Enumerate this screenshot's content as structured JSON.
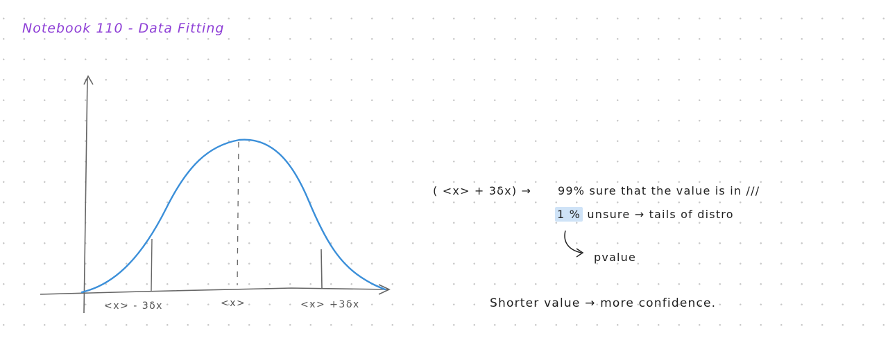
{
  "page": {
    "title": "Notebook 110 - Data Fitting"
  },
  "diagram": {
    "tick_labels": {
      "left": "<x> - 3δx",
      "center": "<x>",
      "right": "<x> +3δx"
    }
  },
  "notes": {
    "line1_prefix": "( <x> + 3δx) →",
    "line1_text": "99% sure that the value is in ///",
    "line2_highlight": "1 %",
    "line2_text": "unsure → tails of distro",
    "arrow_label": "pvalue",
    "line3": "Shorter value → more confidence."
  },
  "colors": {
    "title": "#8e3fd6",
    "curve": "#3b8fd9",
    "axes": "#666666",
    "highlight": "#cfe3f7"
  }
}
